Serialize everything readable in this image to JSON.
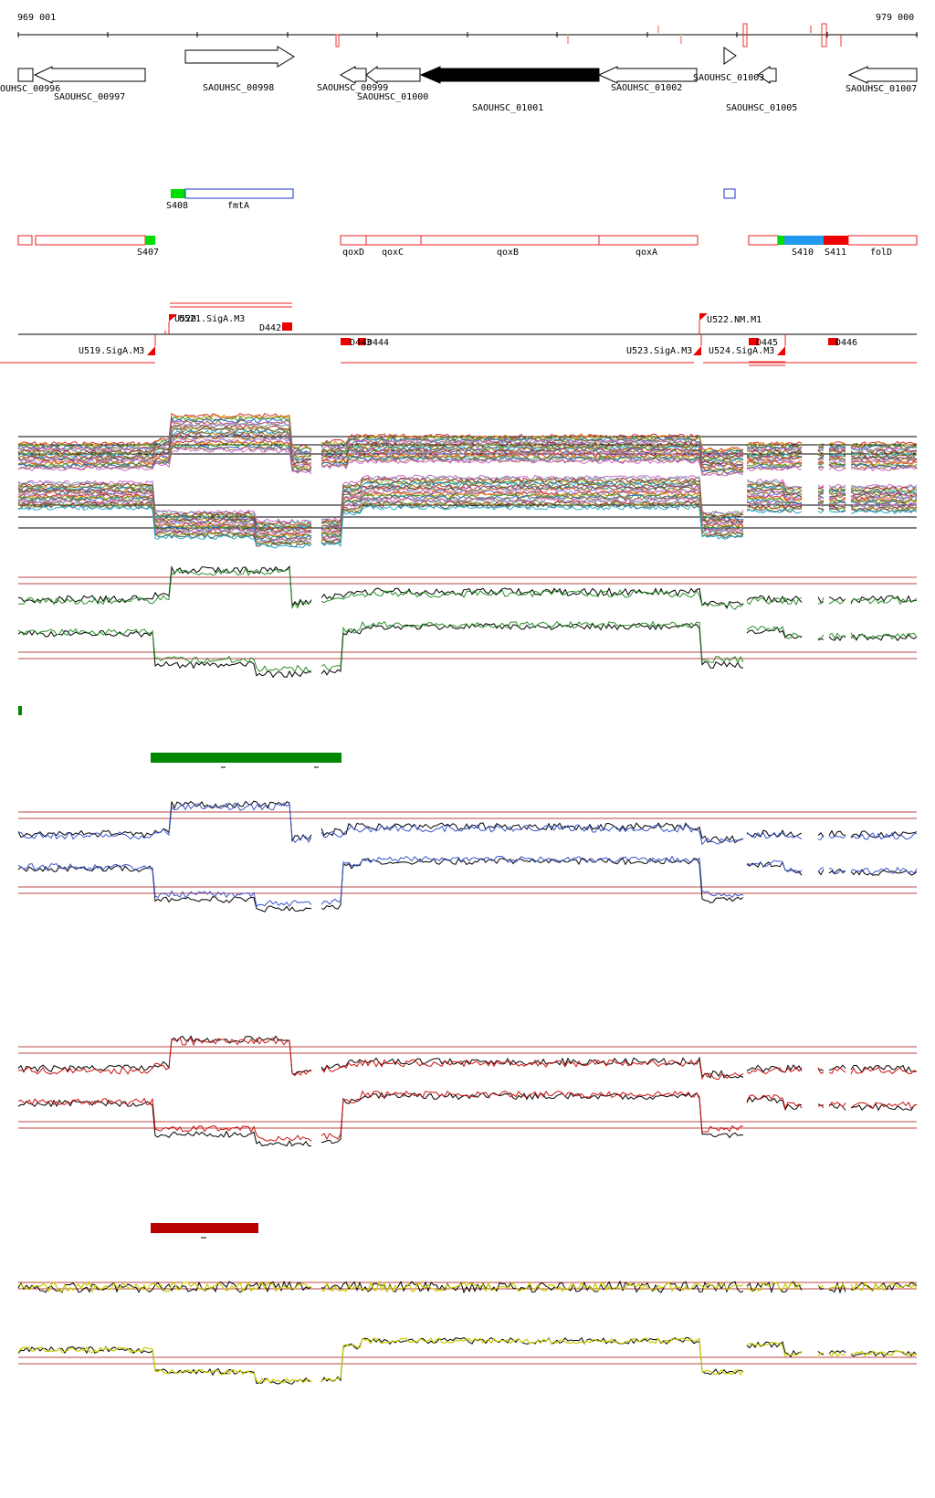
{
  "coordinates": {
    "start": "969 001",
    "end": "979 000"
  },
  "genes": [
    {
      "id": "gene-saouhsc-00996",
      "label": "OUHSC_00996"
    },
    {
      "id": "gene-saouhsc-00997",
      "label": "SAOUHSC_00997"
    },
    {
      "id": "gene-saouhsc-00998",
      "label": "SAOUHSC_00998"
    },
    {
      "id": "gene-saouhsc-00999",
      "label": "SAOUHSC_00999"
    },
    {
      "id": "gene-saouhsc-01000",
      "label": "SAOUHSC_01000"
    },
    {
      "id": "gene-saouhsc-01001",
      "label": "SAOUHSC_01001"
    },
    {
      "id": "gene-saouhsc-01002",
      "label": "SAOUHSC_01002"
    },
    {
      "id": "gene-saouhsc-01003",
      "label": "SAOUHSC_01003"
    },
    {
      "id": "gene-saouhsc-01005",
      "label": "SAOUHSC_01005"
    },
    {
      "id": "gene-saouhsc-01007",
      "label": "SAOUHSC_01007"
    }
  ],
  "features": {
    "s408": "S408",
    "fmta": "fmtA",
    "s407": "S407",
    "qoxd": "qoxD",
    "qoxc": "qoxC",
    "qoxb": "qoxB",
    "qoxa": "qoxA",
    "s410": "S410",
    "s411": "S411",
    "fold": "folD"
  },
  "sites": {
    "u520": "U520",
    "u521": "U521.SigA.M3",
    "d442": "D442",
    "u519": "U519.SigA.M3",
    "d443": "D443",
    "d444": "D444",
    "u522": "U522.NM.M1",
    "u523": "U523.SigA.M3",
    "u524": "U524.SigA.M3",
    "d445": "D445",
    "d446": "D446"
  },
  "colors": {
    "gene_fill": "#ffffff",
    "gene_dark": "#000000",
    "feature_outline": "#ee2222",
    "feature_green": "#00dd00",
    "feature_blue": "#2299ee",
    "feature_red": "#ee0000",
    "green_bar": "#008800",
    "darkred_bar": "#bb0000",
    "track_green": "#2a8f2a",
    "track_blue": "#3a55cc",
    "track_red": "#cc1111",
    "track_yellow": "#cccc00",
    "ref_line": "#bb4444"
  }
}
